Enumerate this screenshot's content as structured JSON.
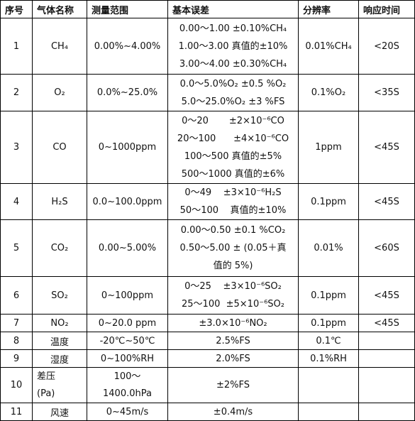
{
  "headers": [
    "序号",
    "气体名称",
    "测量范围",
    "基本误差",
    "分辨率",
    "响应时间"
  ],
  "rows": [
    {
      "no": "1",
      "gas": "CH₄",
      "range": "0.00%~4.00%",
      "error": [
        "0.00～1.00 ±0.10%CH₄",
        "1.00～3.00 真值的±10%",
        "3.00～4.00 ±0.30%CH₄"
      ],
      "resolution": "0.01%CH₄",
      "response": "<20S"
    },
    {
      "no": "2",
      "gas": "O₂",
      "range": "0.0%~25.0%",
      "error": [
        "0.0～5.0%O₂ ±0.5 %O₂",
        "5.0～25.0%O₂ ±3 %FS"
      ],
      "resolution": "0.1%O₂",
      "response": "<35S"
    },
    {
      "no": "3",
      "gas": "CO",
      "range": "0~1000ppm",
      "error": [
        "0～20       ±2×10⁻⁶CO",
        "20～100      ±4×10⁻⁶CO",
        "100～500  真值的±5%",
        "500～1000 真值的±6%"
      ],
      "resolution": "1ppm",
      "response": "<45S"
    },
    {
      "no": "4",
      "gas": "H₂S",
      "range": "0.0~100.0ppm",
      "error": [
        "0～49    ±3×10⁻⁶H₂S",
        "50～100    真值的±10%"
      ],
      "resolution": "0.1ppm",
      "response": "<45S"
    },
    {
      "no": "5",
      "gas": "CO₂",
      "range": "0.00~5.00%",
      "error": [
        "0.00～0.50 ±0.1 %CO₂",
        "0.50～5.00 ± (0.05＋真",
        "值的 5%)"
      ],
      "resolution": "0.01%",
      "response": "<60S"
    },
    {
      "no": "6",
      "gas": "SO₂",
      "range": "0~100ppm",
      "error": [
        "0～25    ±3×10⁻⁶SO₂",
        "25～100  ±5×10⁻⁶SO₂"
      ],
      "resolution": "0.1ppm",
      "response": "<45S"
    },
    {
      "no": "7",
      "gas": "NO₂",
      "range": "0~20.0 ppm",
      "error": [
        "±3.0×10⁻⁶NO₂"
      ],
      "resolution": "0.1ppm",
      "response": "<45S"
    },
    {
      "no": "8",
      "gas": "温度",
      "range": "-20℃~50℃",
      "error": [
        "2.5%FS"
      ],
      "resolution": "0.1℃",
      "response": ""
    },
    {
      "no": "9",
      "gas": "湿度",
      "range": "0~100%RH",
      "error": [
        "2.0%FS"
      ],
      "resolution": "0.1%RH",
      "response": ""
    },
    {
      "no": "10",
      "gas_lines": [
        "差压",
        "(Pa)"
      ],
      "range_lines": [
        "100～",
        "1400.0hPa"
      ],
      "error": [
        "±2%FS"
      ],
      "resolution": "",
      "response": ""
    },
    {
      "no": "11",
      "gas": "风速",
      "range": "0~45m/s",
      "error": [
        "±0.4m/s"
      ],
      "resolution": "",
      "response": ""
    }
  ]
}
